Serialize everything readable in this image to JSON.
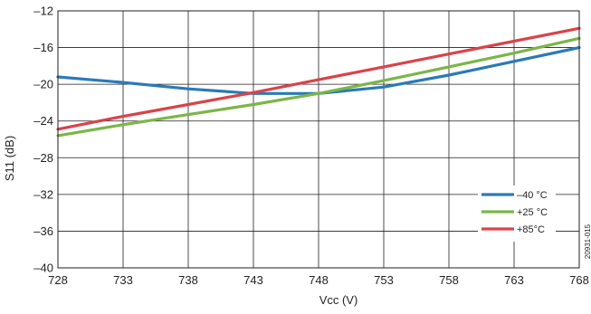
{
  "chart_data": {
    "type": "line",
    "xlabel": "Vcc (V)",
    "ylabel": "S11 (dB)",
    "xlim": [
      728,
      768
    ],
    "ylim": [
      -40,
      -12
    ],
    "xticks": [
      728,
      733,
      738,
      743,
      748,
      753,
      758,
      763,
      768
    ],
    "xtick_labels": [
      "728",
      "733",
      "738",
      "743",
      "748",
      "753",
      "758",
      "763",
      "768"
    ],
    "yticks": [
      -40,
      -36,
      -32,
      -28,
      -24,
      -20,
      -16,
      -12
    ],
    "ytick_labels": [
      "–40",
      "–36",
      "–32",
      "–28",
      "–24",
      "–20",
      "–16",
      "–12"
    ],
    "grid": true,
    "legend_position": "bottom-right",
    "figure_id": "20931-015",
    "series": [
      {
        "name": "–40 °C",
        "color": "#2a7ab8",
        "x": [
          728,
          733,
          738,
          743,
          748,
          753,
          758,
          763,
          768
        ],
        "y": [
          -19.2,
          -19.8,
          -20.5,
          -21.0,
          -21.0,
          -20.3,
          -19.0,
          -17.5,
          -16.0
        ]
      },
      {
        "name": "+25 °C",
        "color": "#7ab648",
        "x": [
          728,
          733,
          738,
          743,
          748,
          753,
          758,
          763,
          768
        ],
        "y": [
          -25.6,
          -24.4,
          -23.3,
          -22.2,
          -21.0,
          -19.6,
          -18.1,
          -16.6,
          -15.0
        ]
      },
      {
        "name": "+85°C",
        "color": "#d9434a",
        "x": [
          728,
          733,
          738,
          743,
          748,
          753,
          758,
          763,
          768
        ],
        "y": [
          -24.9,
          -23.5,
          -22.2,
          -20.9,
          -19.5,
          -18.1,
          -16.7,
          -15.3,
          -13.9
        ]
      }
    ]
  }
}
